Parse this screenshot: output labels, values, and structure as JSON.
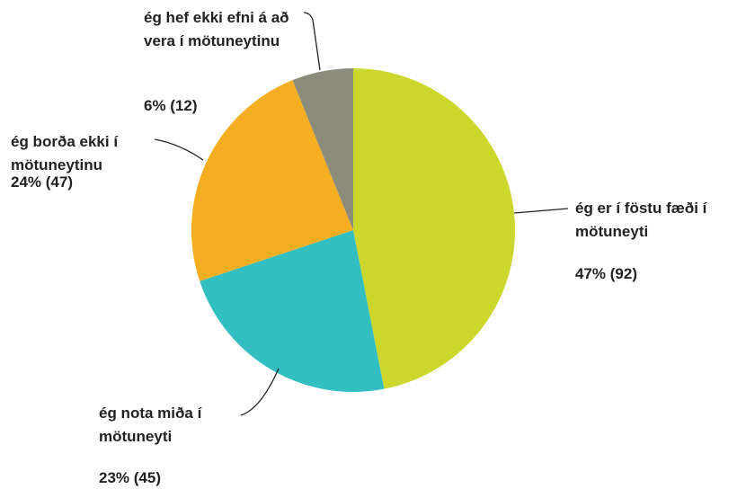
{
  "chart_data": {
    "type": "pie",
    "categories": [
      "ég er í föstu fæði í mötuneyti",
      "ég nota miða í mötuneyti",
      "ég borða ekki í mötuneytinu",
      "ég hef ekki efni á að vera í mötuneytinu"
    ],
    "values": [
      92,
      45,
      47,
      12
    ],
    "value_labels": [
      "47% (92)",
      "23% (45)",
      "24% (47)",
      "6% (12)"
    ],
    "colors": [
      "#cdd62a",
      "#33bfc1",
      "#f5ae21",
      "#8c8c7a"
    ]
  }
}
